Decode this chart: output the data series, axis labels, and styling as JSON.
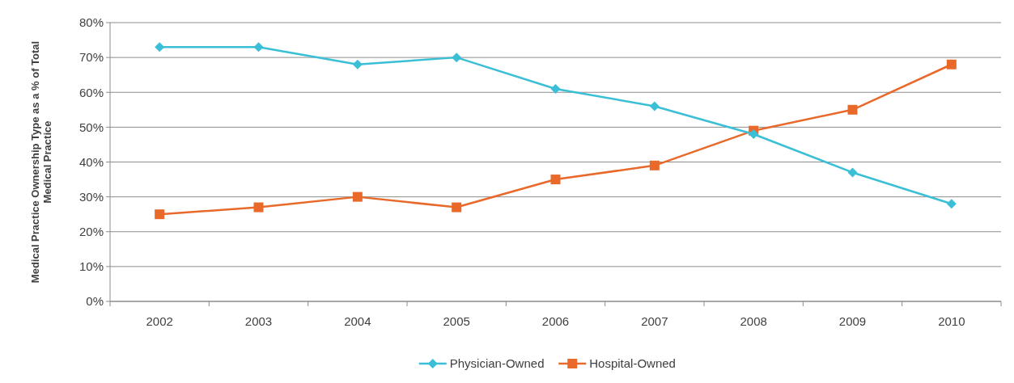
{
  "chart_data": {
    "type": "line",
    "ylabel": "Medical Practice Ownership Type as a % of Total Medical Practice",
    "categories": [
      "2002",
      "2003",
      "2004",
      "2005",
      "2006",
      "2007",
      "2008",
      "2009",
      "2010"
    ],
    "series": [
      {
        "name": "Physician-Owned",
        "color": "#3bbfd6",
        "marker": "diamond",
        "values": [
          73,
          73,
          68,
          70,
          61,
          56,
          48,
          37,
          28
        ]
      },
      {
        "name": "Hospital-Owned",
        "color": "#e8692a",
        "marker": "square",
        "values": [
          25,
          27,
          30,
          27,
          35,
          39,
          49,
          55,
          68
        ]
      }
    ],
    "ylim": [
      0,
      80
    ],
    "yticks": [
      {
        "value": 0,
        "label": "0%"
      },
      {
        "value": 10,
        "label": "10%"
      },
      {
        "value": 20,
        "label": "20%"
      },
      {
        "value": 30,
        "label": "30%"
      },
      {
        "value": 40,
        "label": "40%"
      },
      {
        "value": 50,
        "label": "50%"
      },
      {
        "value": 60,
        "label": "60%"
      },
      {
        "value": 70,
        "label": "70%"
      },
      {
        "value": 80,
        "label": "80%"
      }
    ],
    "grid": "y",
    "legend": "bottom"
  }
}
